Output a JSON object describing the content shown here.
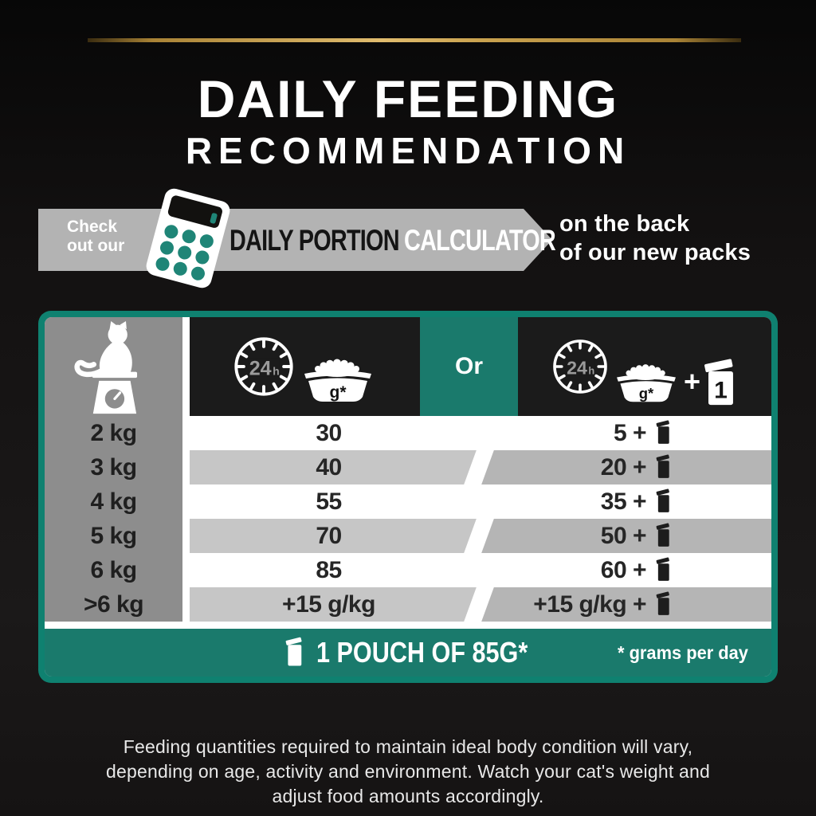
{
  "title": {
    "line1": "DAILY FEEDING",
    "line2": "RECOMMENDATION"
  },
  "promo": {
    "check_line1": "Check",
    "check_line2": "out our",
    "portion_label": "DAILY PORTION",
    "calculator_label": "CALCULATOR",
    "location_line1": "on the back",
    "location_line2": "of our new packs"
  },
  "colors": {
    "teal": "#1a7a6c",
    "teal_border": "#0f8170",
    "gold": "#c9a24f",
    "banner_gray": "#b3b3b3",
    "weight_col_gray": "#8d8d8d",
    "row_gray_left": "#c6c6c6",
    "row_gray_right": "#b5b5b5",
    "header_black": "#1b1b1b"
  },
  "table": {
    "header": {
      "or_label": "Or",
      "clock_num": "24",
      "clock_unit": "h",
      "bowl_label": "g*",
      "plus_sign": "+",
      "pouch_label": "1"
    },
    "rows": [
      {
        "weight": "2 kg",
        "dry": "30",
        "combo": "5 +",
        "shaded": false
      },
      {
        "weight": "3 kg",
        "dry": "40",
        "combo": "20 +",
        "shaded": true
      },
      {
        "weight": "4 kg",
        "dry": "55",
        "combo": "35 +",
        "shaded": false
      },
      {
        "weight": "5 kg",
        "dry": "70",
        "combo": "50 +",
        "shaded": true
      },
      {
        "weight": "6 kg",
        "dry": "85",
        "combo": "60 +",
        "shaded": false
      },
      {
        "weight": ">6 kg",
        "dry": "+15 g/kg",
        "combo": "+15 g/kg +",
        "shaded": true
      }
    ],
    "footer": {
      "pouch_text": "1 POUCH OF 85G*",
      "note": "* grams per day"
    }
  },
  "disclaimer": {
    "lines": [
      "Feeding quantities required to maintain ideal body condition will vary,",
      "depending on age, activity and environment. Watch your cat's weight and",
      "adjust food amounts accordingly."
    ]
  }
}
